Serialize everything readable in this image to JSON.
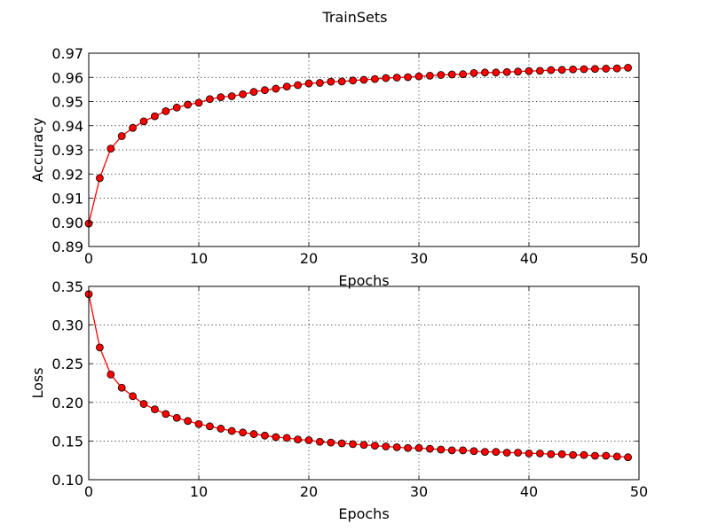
{
  "figure_title": "TrainSets",
  "colors": {
    "series": "#ff0000",
    "marker_edge": "#000000"
  },
  "chart_data": [
    {
      "type": "line",
      "title": "",
      "xlabel": "Epochs",
      "ylabel": "Accuracy",
      "xlim": [
        0,
        50
      ],
      "ylim": [
        0.89,
        0.97
      ],
      "xticks": [
        0,
        10,
        20,
        30,
        40,
        50
      ],
      "xtick_labels": [
        "0",
        "10",
        "20",
        "30",
        "40",
        "50"
      ],
      "yticks": [
        0.89,
        0.9,
        0.91,
        0.92,
        0.93,
        0.94,
        0.95,
        0.96,
        0.97
      ],
      "ytick_labels": [
        "0.89",
        "0.90",
        "0.91",
        "0.92",
        "0.93",
        "0.94",
        "0.95",
        "0.96",
        "0.97"
      ],
      "grid": true,
      "marker": "circle",
      "series": [
        {
          "x": [
            0,
            1,
            2,
            3,
            4,
            5,
            6,
            7,
            8,
            9,
            10,
            11,
            12,
            13,
            14,
            15,
            16,
            17,
            18,
            19,
            20,
            21,
            22,
            23,
            24,
            25,
            26,
            27,
            28,
            29,
            30,
            31,
            32,
            33,
            34,
            35,
            36,
            37,
            38,
            39,
            40,
            41,
            42,
            43,
            44,
            45,
            46,
            47,
            48,
            49
          ],
          "values": [
            0.8995,
            0.9183,
            0.9305,
            0.9357,
            0.9391,
            0.9418,
            0.9439,
            0.946,
            0.9475,
            0.9487,
            0.9495,
            0.951,
            0.9518,
            0.9522,
            0.953,
            0.954,
            0.9547,
            0.9553,
            0.9562,
            0.9568,
            0.9575,
            0.9577,
            0.9582,
            0.9583,
            0.9587,
            0.959,
            0.9593,
            0.9597,
            0.9599,
            0.9601,
            0.9604,
            0.9607,
            0.961,
            0.9612,
            0.9613,
            0.9618,
            0.962,
            0.962,
            0.9622,
            0.9624,
            0.9626,
            0.9627,
            0.963,
            0.9631,
            0.9633,
            0.9634,
            0.9635,
            0.9636,
            0.9637,
            0.964
          ]
        }
      ]
    },
    {
      "type": "line",
      "title": "",
      "xlabel": "Epochs",
      "ylabel": "Loss",
      "xlim": [
        0,
        50
      ],
      "ylim": [
        0.1,
        0.35
      ],
      "xticks": [
        0,
        10,
        20,
        30,
        40,
        50
      ],
      "xtick_labels": [
        "0",
        "10",
        "20",
        "30",
        "40",
        "50"
      ],
      "yticks": [
        0.1,
        0.15,
        0.2,
        0.25,
        0.3,
        0.35
      ],
      "ytick_labels": [
        "0.10",
        "0.15",
        "0.20",
        "0.25",
        "0.30",
        "0.35"
      ],
      "grid": true,
      "marker": "circle",
      "series": [
        {
          "x": [
            0,
            1,
            2,
            3,
            4,
            5,
            6,
            7,
            8,
            9,
            10,
            11,
            12,
            13,
            14,
            15,
            16,
            17,
            18,
            19,
            20,
            21,
            22,
            23,
            24,
            25,
            26,
            27,
            28,
            29,
            30,
            31,
            32,
            33,
            34,
            35,
            36,
            37,
            38,
            39,
            40,
            41,
            42,
            43,
            44,
            45,
            46,
            47,
            48,
            49
          ],
          "values": [
            0.34,
            0.271,
            0.236,
            0.219,
            0.208,
            0.198,
            0.191,
            0.185,
            0.18,
            0.176,
            0.172,
            0.169,
            0.166,
            0.163,
            0.161,
            0.159,
            0.157,
            0.155,
            0.154,
            0.152,
            0.151,
            0.149,
            0.148,
            0.147,
            0.146,
            0.145,
            0.144,
            0.143,
            0.142,
            0.141,
            0.141,
            0.14,
            0.139,
            0.138,
            0.138,
            0.137,
            0.136,
            0.136,
            0.135,
            0.135,
            0.134,
            0.134,
            0.133,
            0.133,
            0.132,
            0.132,
            0.131,
            0.131,
            0.13,
            0.129
          ]
        }
      ]
    }
  ]
}
